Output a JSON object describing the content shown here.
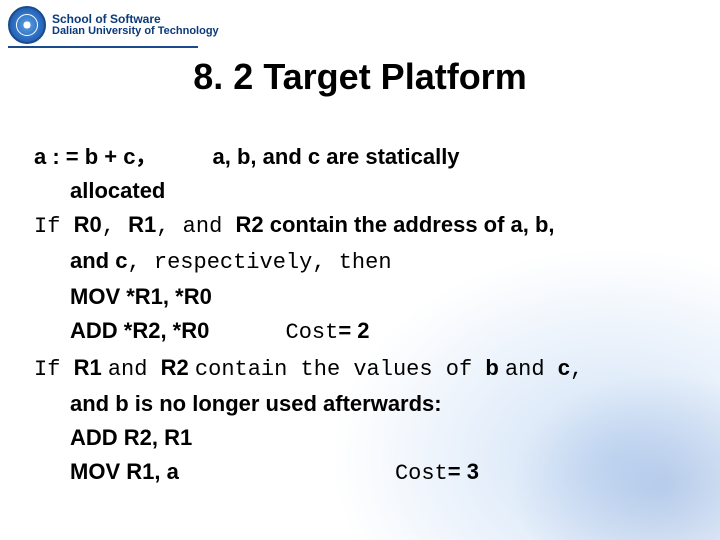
{
  "colors": {
    "brand": "#1a4b8c",
    "text": "#000000",
    "bg": "#ffffff"
  },
  "fonts": {
    "title_size": 36,
    "body_size": 22
  },
  "header": {
    "line1": "School of Software",
    "line2": "Dalian University of Technology"
  },
  "title": "8. 2 Target Platform",
  "body": {
    "l1a": "a : = b + c",
    "l1comma": "，",
    "l1b": "a, b, and c are statically",
    "l2": "allocated",
    "l3_if": "If ",
    "l3_r0": "R0",
    "l3_c1": ",  ",
    "l3_r1": "R1",
    "l3_c2": ",  ",
    "l3_and": "and ",
    "l3_r2": "R2 contain the address of a,  b,",
    "l4_and": "and ",
    "l4_c": "c",
    "l4_rest": ", respectively, then",
    "l5": "MOV *R1, *R0",
    "l6a": "ADD *R2, *R0",
    "l6_cost_lbl": "Cost",
    "l6_cost_val": "= 2",
    "l7_if": "If ",
    "l7_r1": "R1 ",
    "l7_and1": "and ",
    "l7_r2": "R2 ",
    "l7_mid": "contain the values of ",
    "l7_b": "b ",
    "l7_and2": "and ",
    "l7_c": "c",
    "l7_comma": ",",
    "l8": "and b is no longer used afterwards:",
    "l9": "ADD R2, R1",
    "l10a": "MOV R1, a",
    "l10_cost_lbl": "Cost",
    "l10_cost_val": "= 3"
  }
}
